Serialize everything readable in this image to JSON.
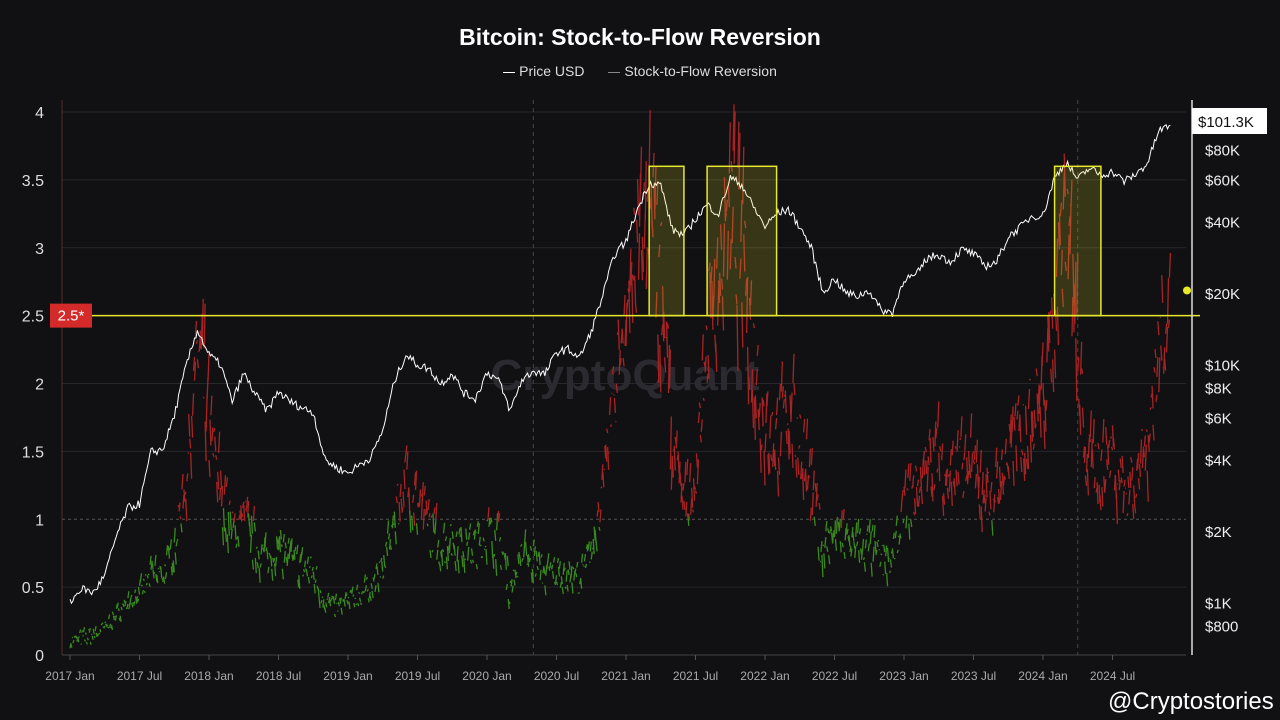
{
  "chart_data": {
    "type": "line",
    "title": "Bitcoin: Stock-to-Flow Reversion",
    "legend": [
      "Price USD",
      "Stock-to-Flow Reversion"
    ],
    "legend_placement": "top-center",
    "x_ticks": [
      "2017 Jan",
      "2017 Jul",
      "2018 Jan",
      "2018 Jul",
      "2019 Jan",
      "2019 Jul",
      "2020 Jan",
      "2020 Jul",
      "2021 Jan",
      "2021 Jul",
      "2022 Jan",
      "2022 Jul",
      "2023 Jan",
      "2023 Jul",
      "2024 Jan",
      "2024 Jul"
    ],
    "x_start": "2017-01",
    "x_step": "month",
    "left_axis": {
      "ticks": [
        "0",
        "0.5",
        "1",
        "1.5",
        "2",
        "2.5",
        "3",
        "3.5",
        "4"
      ],
      "range": [
        0,
        4
      ]
    },
    "right_axis": {
      "scale": "log",
      "ticks": [
        "$800",
        "$1K",
        "$2K",
        "$4K",
        "$6K",
        "$8K",
        "$10K",
        "$20K",
        "$40K",
        "$60K",
        "$80K"
      ],
      "tick_values": [
        800,
        1000,
        2000,
        4000,
        6000,
        8000,
        10000,
        20000,
        40000,
        60000,
        80000
      ],
      "current_label": "$101.3K"
    },
    "threshold": {
      "value": 2.5,
      "label": "2.5*",
      "color": "#e8e82a"
    },
    "highlight_periods": [
      [
        "2021-03",
        "2021-05"
      ],
      [
        "2021-08",
        "2022-01"
      ],
      [
        "2024-02",
        "2024-05"
      ]
    ],
    "halving_lines": [
      "2020-05",
      "2024-04"
    ],
    "colors": {
      "price": "#ffffff",
      "below_1": "#3a8a1e",
      "above_1": "#a82424",
      "highlight": "#e8e82a",
      "threshold_label_bg": "#d42a2a"
    },
    "series": [
      {
        "name": "Price USD",
        "axis": "right",
        "values": [
          1000,
          1150,
          1100,
          1300,
          1900,
          2500,
          2600,
          4300,
          4400,
          6100,
          9800,
          14000,
          11000,
          10000,
          7000,
          9200,
          7500,
          6400,
          7700,
          7000,
          6600,
          6300,
          4000,
          3700,
          3500,
          3800,
          4100,
          5300,
          8500,
          11000,
          10000,
          9600,
          8300,
          9200,
          7600,
          7200,
          9300,
          8600,
          6400,
          8600,
          9400,
          9100,
          11300,
          11600,
          10700,
          13800,
          19600,
          29000,
          33000,
          45000,
          58000,
          57000,
          37000,
          35000,
          41000,
          47000,
          43000,
          61000,
          57000,
          46000,
          38000,
          43000,
          45000,
          38000,
          31000,
          20000,
          23000,
          20000,
          19400,
          20500,
          17000,
          16500,
          23000,
          23500,
          28000,
          29000,
          27000,
          30500,
          29200,
          26000,
          27000,
          34500,
          37700,
          42000,
          42500,
          61000,
          71000,
          60000,
          67000,
          62700,
          64600,
          59000,
          63000,
          70000,
          96000,
          101300
        ]
      },
      {
        "name": "Stock-to-Flow Reversion",
        "axis": "left",
        "values": [
          0.1,
          0.12,
          0.15,
          0.2,
          0.3,
          0.4,
          0.45,
          0.6,
          0.6,
          0.8,
          1.3,
          2.3,
          1.6,
          1.2,
          0.9,
          1.0,
          0.8,
          0.7,
          0.8,
          0.7,
          0.65,
          0.6,
          0.4,
          0.35,
          0.4,
          0.45,
          0.5,
          0.65,
          1.0,
          1.3,
          1.1,
          0.95,
          0.8,
          0.85,
          0.8,
          0.8,
          0.9,
          0.85,
          0.5,
          0.75,
          0.7,
          0.6,
          0.6,
          0.6,
          0.55,
          0.8,
          1.2,
          2.0,
          2.6,
          3.0,
          3.2,
          2.8,
          1.5,
          1.1,
          1.3,
          2.4,
          2.8,
          3.3,
          2.9,
          2.2,
          1.7,
          1.6,
          1.8,
          1.6,
          1.2,
          0.8,
          0.9,
          0.85,
          0.8,
          0.8,
          0.7,
          0.7,
          1.1,
          1.2,
          1.4,
          1.5,
          1.3,
          1.4,
          1.35,
          1.2,
          1.2,
          1.5,
          1.6,
          1.8,
          1.9,
          2.6,
          3.4,
          2.0,
          1.4,
          1.4,
          1.5,
          1.2,
          1.3,
          1.6,
          2.3,
          2.7
        ]
      }
    ]
  },
  "watermark": {
    "center": "CryptoQuant",
    "corner": "@Cryptostories"
  }
}
